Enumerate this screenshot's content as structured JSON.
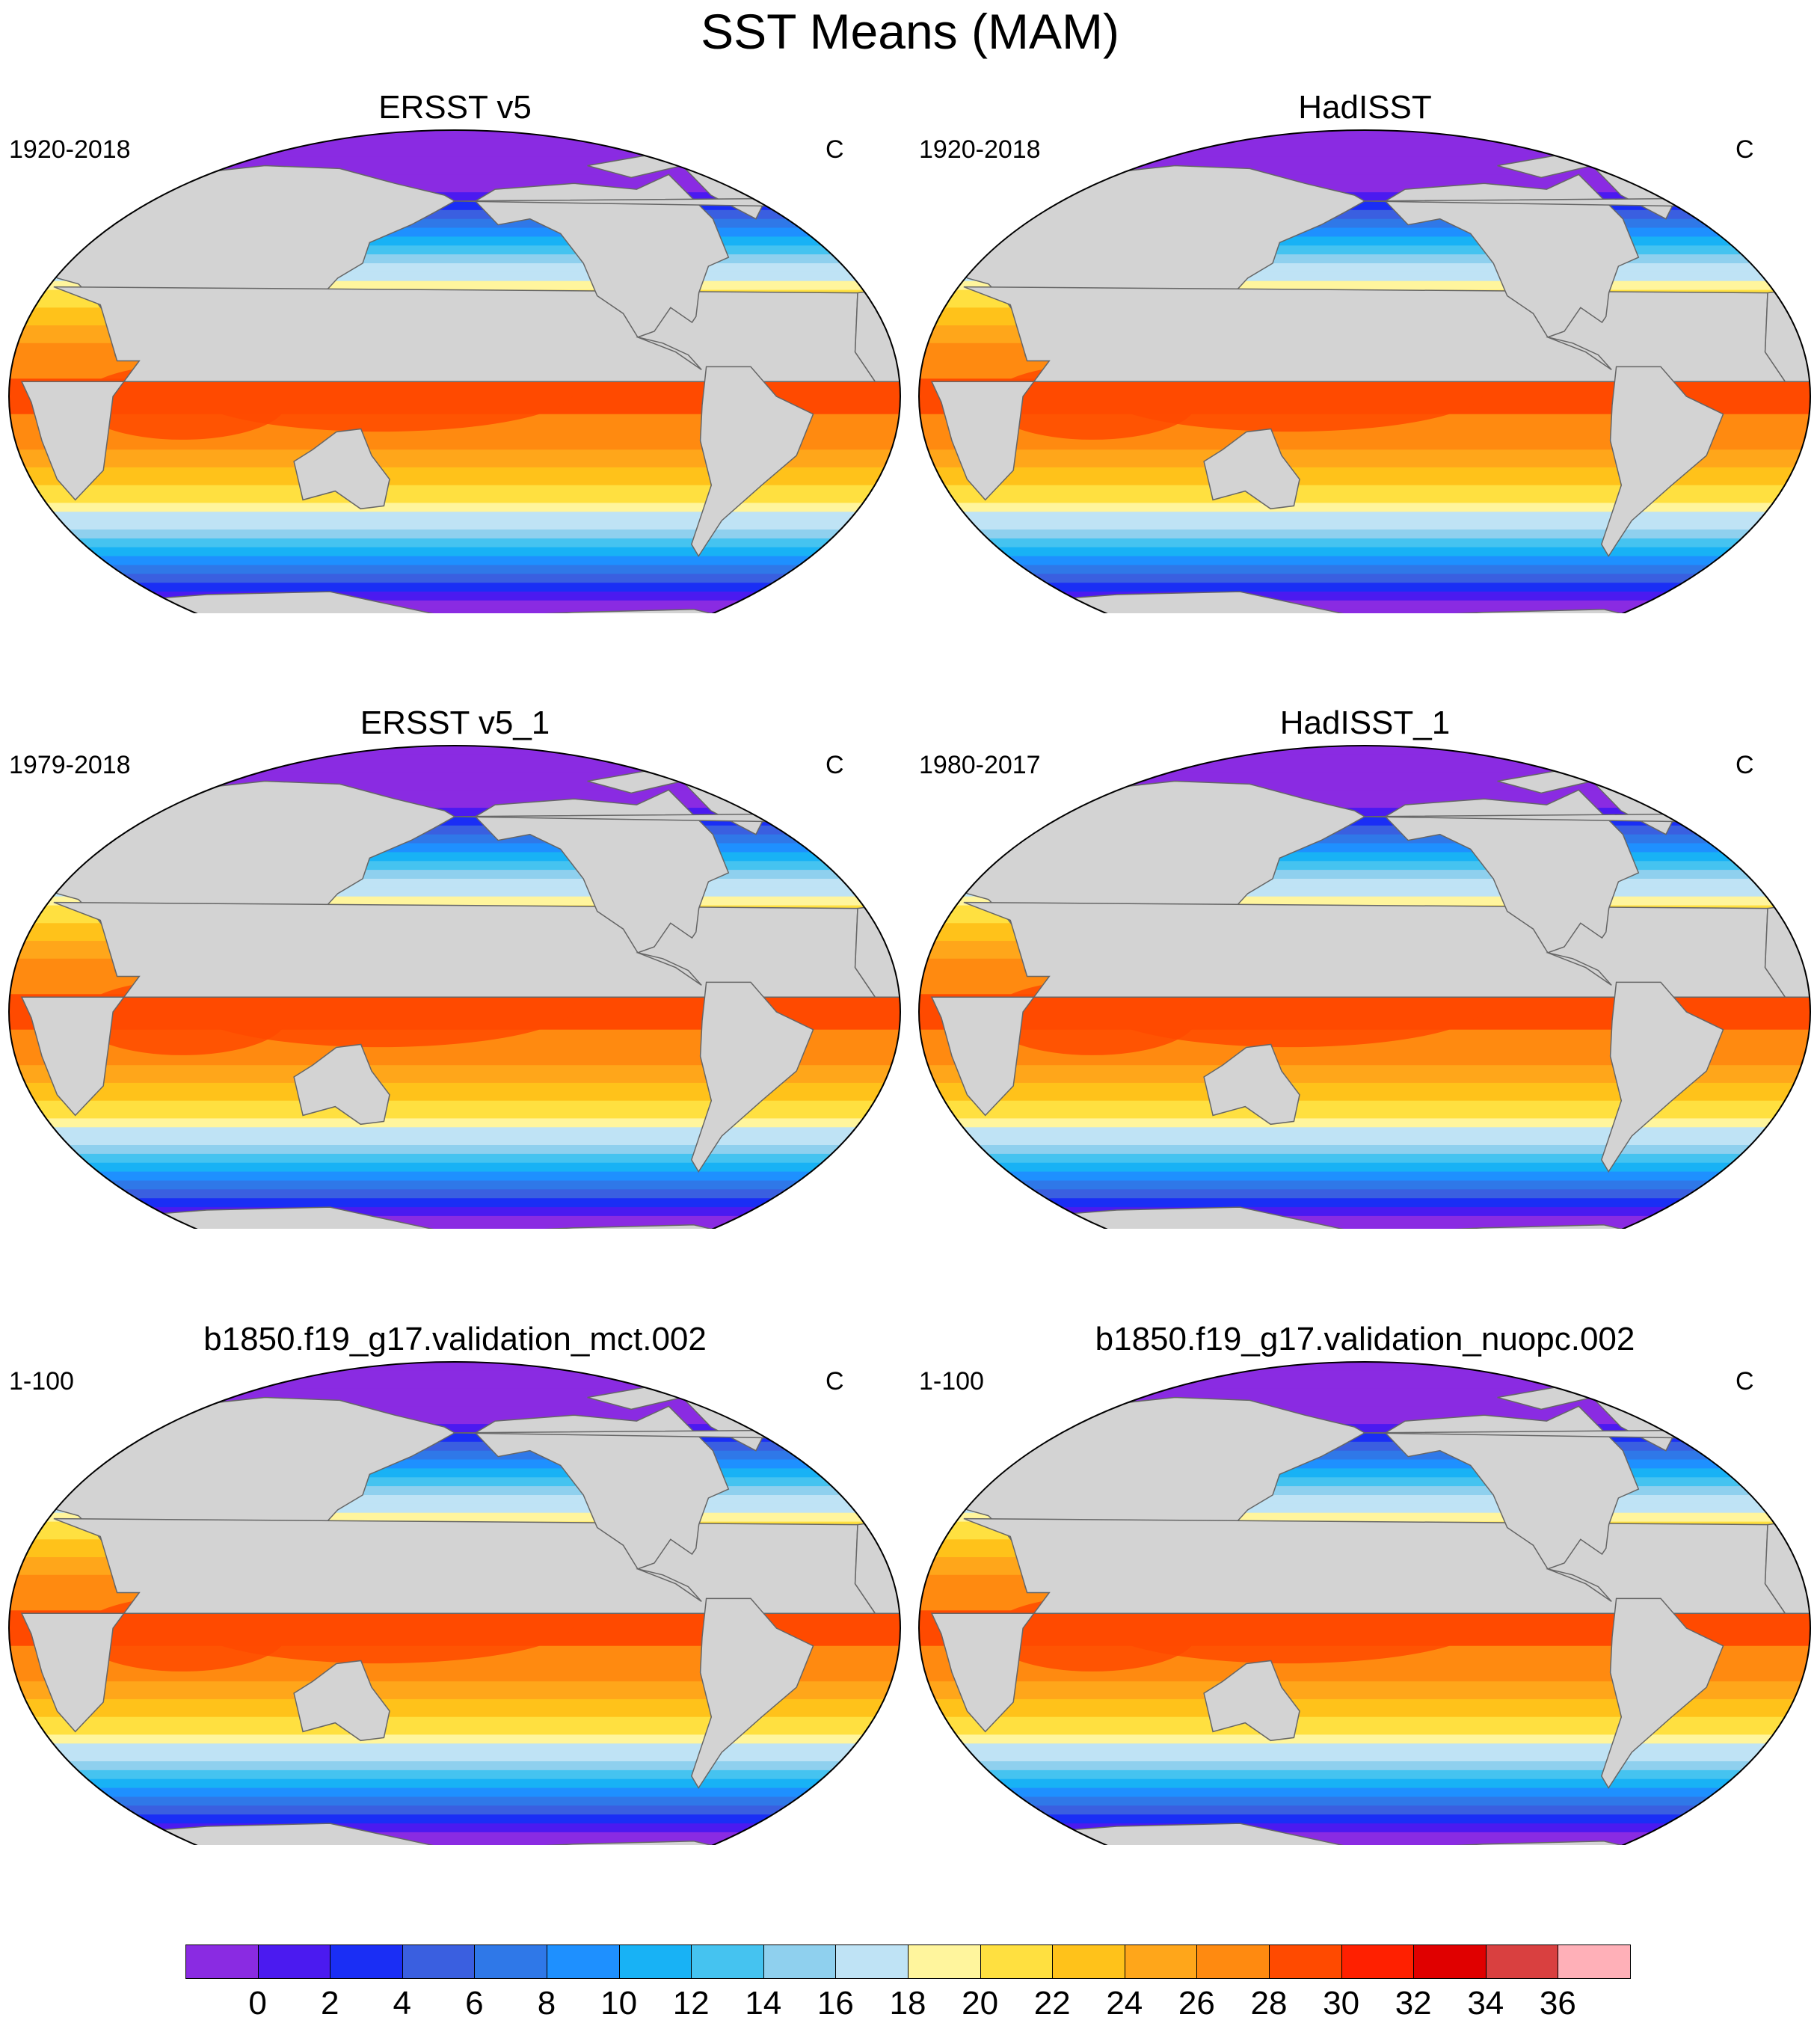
{
  "title": "SST Means (MAM)",
  "panels": [
    {
      "title": "ERSST v5",
      "period": "1920-2018",
      "units": "C"
    },
    {
      "title": "HadISST",
      "period": "1920-2018",
      "units": "C"
    },
    {
      "title": "ERSST v5_1",
      "period": "1979-2018",
      "units": "C"
    },
    {
      "title": "HadISST_1",
      "period": "1980-2017",
      "units": "C"
    },
    {
      "title": "b1850.f19_g17.validation_mct.002",
      "period": "1-100",
      "units": "C"
    },
    {
      "title": "b1850.f19_g17.validation_nuopc.002",
      "period": "1-100",
      "units": "C"
    }
  ],
  "colorbar": {
    "labels": [
      "0",
      "2",
      "4",
      "6",
      "8",
      "10",
      "12",
      "14",
      "16",
      "18",
      "20",
      "22",
      "24",
      "26",
      "28",
      "30",
      "32",
      "34",
      "36"
    ],
    "colors": [
      "#8a2be2",
      "#4b1af0",
      "#1a2ef5",
      "#3a5fe0",
      "#2f78e8",
      "#1e90ff",
      "#18b2f5",
      "#45c3f0",
      "#8fd0ee",
      "#bfe3f5",
      "#fff59d",
      "#ffe040",
      "#ffc21a",
      "#ffa61a",
      "#ff8a10",
      "#ff4a00",
      "#ff2000",
      "#e00000",
      "#d94040",
      "#ffb0b8"
    ]
  },
  "map_style": {
    "land_color": "#d3d3d3",
    "coast_color": "#666666",
    "border_color": "#000000"
  }
}
